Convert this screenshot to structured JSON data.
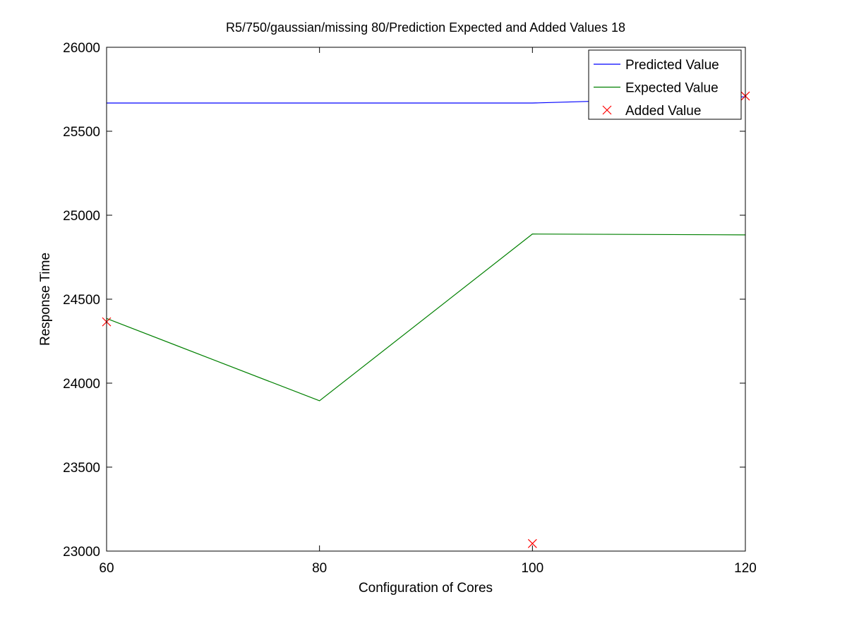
{
  "chart_data": {
    "type": "line",
    "title": "R5/750/gaussian/missing 80/Prediction Expected and Added Values 18",
    "xlabel": "Configuration of Cores",
    "ylabel": "Response Time",
    "xlim": [
      60,
      120
    ],
    "ylim": [
      23000,
      26000
    ],
    "xticks": [
      60,
      80,
      100,
      120
    ],
    "yticks": [
      23000,
      23500,
      24000,
      24500,
      25000,
      25500,
      26000
    ],
    "grid": false,
    "legend_position": "top-right",
    "series": [
      {
        "name": "Predicted Value",
        "style": "line",
        "color": "#0000ff",
        "x": [
          60,
          80,
          100,
          120
        ],
        "y": [
          25668,
          25668,
          25668,
          25705
        ]
      },
      {
        "name": "Expected Value",
        "style": "line",
        "color": "#008000",
        "x": [
          60,
          80,
          100,
          120
        ],
        "y": [
          24385,
          23895,
          24888,
          24883
        ]
      },
      {
        "name": "Added Value",
        "style": "marker-x",
        "color": "#ff0000",
        "x": [
          60,
          100,
          120
        ],
        "y": [
          24365,
          23045,
          25710
        ]
      }
    ]
  }
}
